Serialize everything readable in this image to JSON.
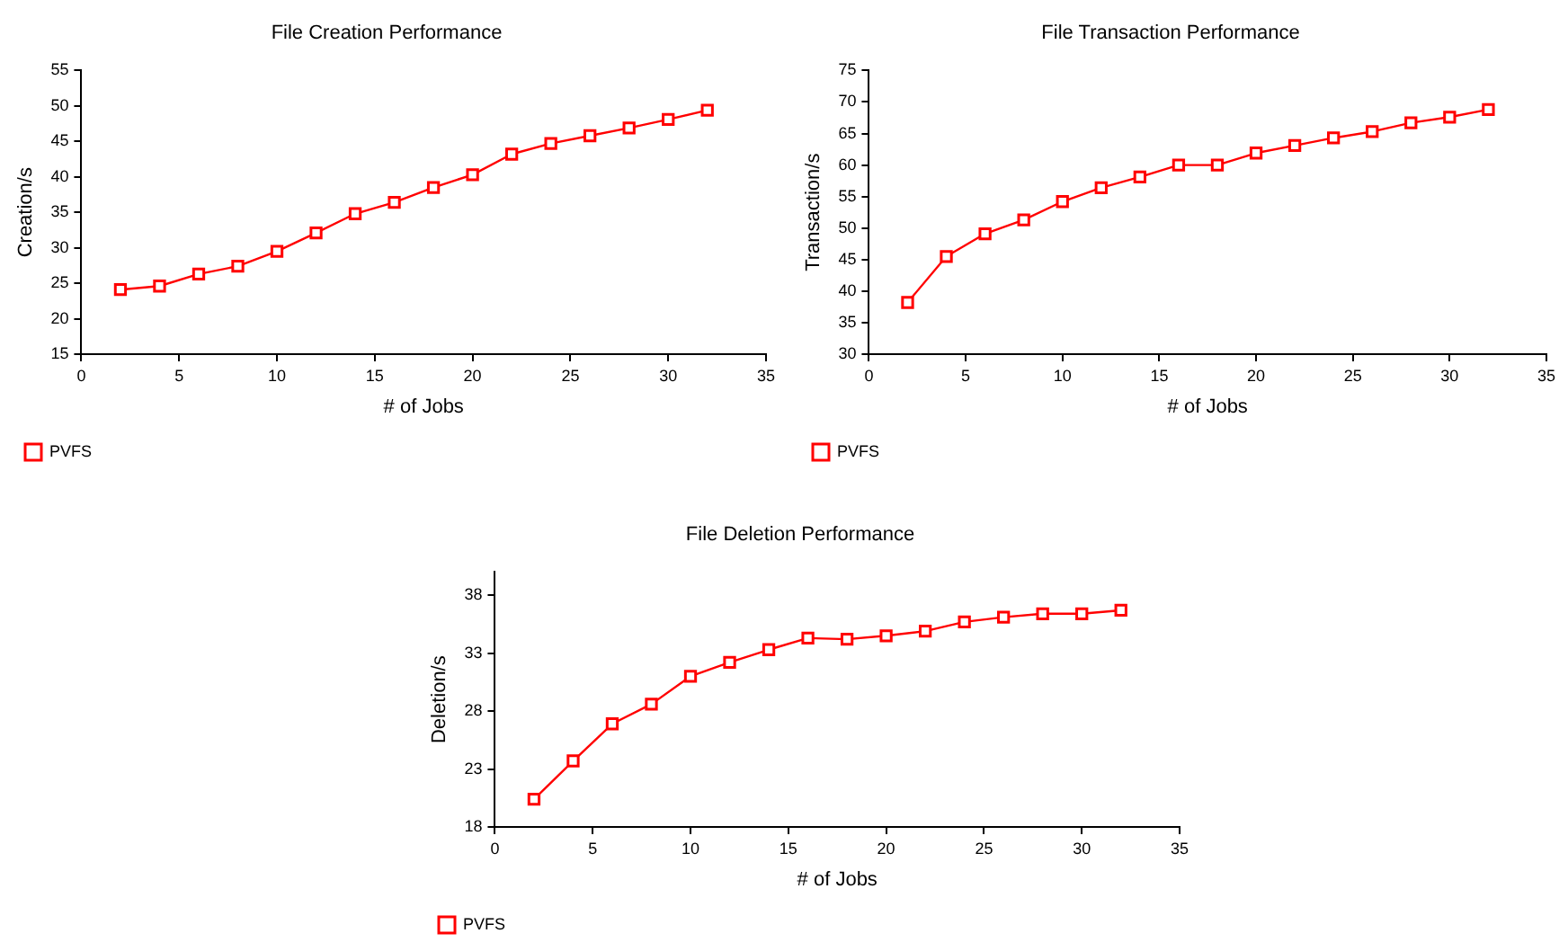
{
  "chart_data": [
    {
      "type": "line",
      "title": "File Creation Performance",
      "xlabel": "# of Jobs",
      "ylabel": "Creation/s",
      "x": [
        2,
        4,
        6,
        8,
        10,
        12,
        14,
        16,
        18,
        20,
        22,
        24,
        26,
        28,
        30,
        32
      ],
      "xlim": [
        0,
        35
      ],
      "xticks": [
        0,
        5,
        10,
        15,
        20,
        25,
        30,
        35
      ],
      "ylim": [
        15,
        55
      ],
      "yticks": [
        15,
        20,
        25,
        30,
        35,
        40,
        45,
        50,
        55
      ],
      "grid": false,
      "legend": "bottom left",
      "marker": "square",
      "line_style": "solid",
      "series": [
        {
          "name": "PVFS",
          "color": "#ff0000",
          "values": [
            24.1,
            24.6,
            26.3,
            27.4,
            29.5,
            32.1,
            34.8,
            36.4,
            38.5,
            40.3,
            43.2,
            44.7,
            45.8,
            46.9,
            48.1,
            49.4
          ]
        }
      ]
    },
    {
      "type": "line",
      "title": "File Transaction Performance",
      "xlabel": "# of Jobs",
      "ylabel": "Transaction/s",
      "x": [
        2,
        4,
        6,
        8,
        10,
        12,
        14,
        16,
        18,
        20,
        22,
        24,
        26,
        28,
        30,
        32
      ],
      "xlim": [
        0,
        35
      ],
      "xticks": [
        0,
        5,
        10,
        15,
        20,
        25,
        30,
        35
      ],
      "ylim": [
        30,
        75
      ],
      "yticks": [
        30,
        35,
        40,
        45,
        50,
        55,
        60,
        65,
        70,
        75
      ],
      "grid": false,
      "legend": "bottom left",
      "marker": "square",
      "line_style": "solid",
      "series": [
        {
          "name": "PVFS",
          "color": "#ff0000",
          "values": [
            38.2,
            45.5,
            49.1,
            51.3,
            54.2,
            56.4,
            58.1,
            60.0,
            60.0,
            61.9,
            63.1,
            64.3,
            65.3,
            66.7,
            67.6,
            68.8
          ]
        }
      ]
    },
    {
      "type": "line",
      "title": "File Deletion Performance",
      "xlabel": "# of Jobs",
      "ylabel": "Deletion/s",
      "x": [
        2,
        4,
        6,
        8,
        10,
        12,
        14,
        16,
        18,
        20,
        22,
        24,
        26,
        28,
        30,
        32
      ],
      "xlim": [
        0,
        35
      ],
      "xticks": [
        0,
        5,
        10,
        15,
        20,
        25,
        30,
        35
      ],
      "ylim": [
        18,
        40
      ],
      "yticks": [
        18,
        23,
        28,
        33,
        38
      ],
      "grid": false,
      "legend": "bottom left",
      "marker": "square",
      "line_style": "solid",
      "series": [
        {
          "name": "PVFS",
          "color": "#ff0000",
          "values": [
            20.4,
            23.7,
            26.9,
            28.6,
            31.0,
            32.2,
            33.3,
            34.3,
            34.2,
            34.5,
            34.9,
            35.7,
            36.1,
            36.4,
            36.4,
            36.7
          ]
        }
      ]
    }
  ]
}
